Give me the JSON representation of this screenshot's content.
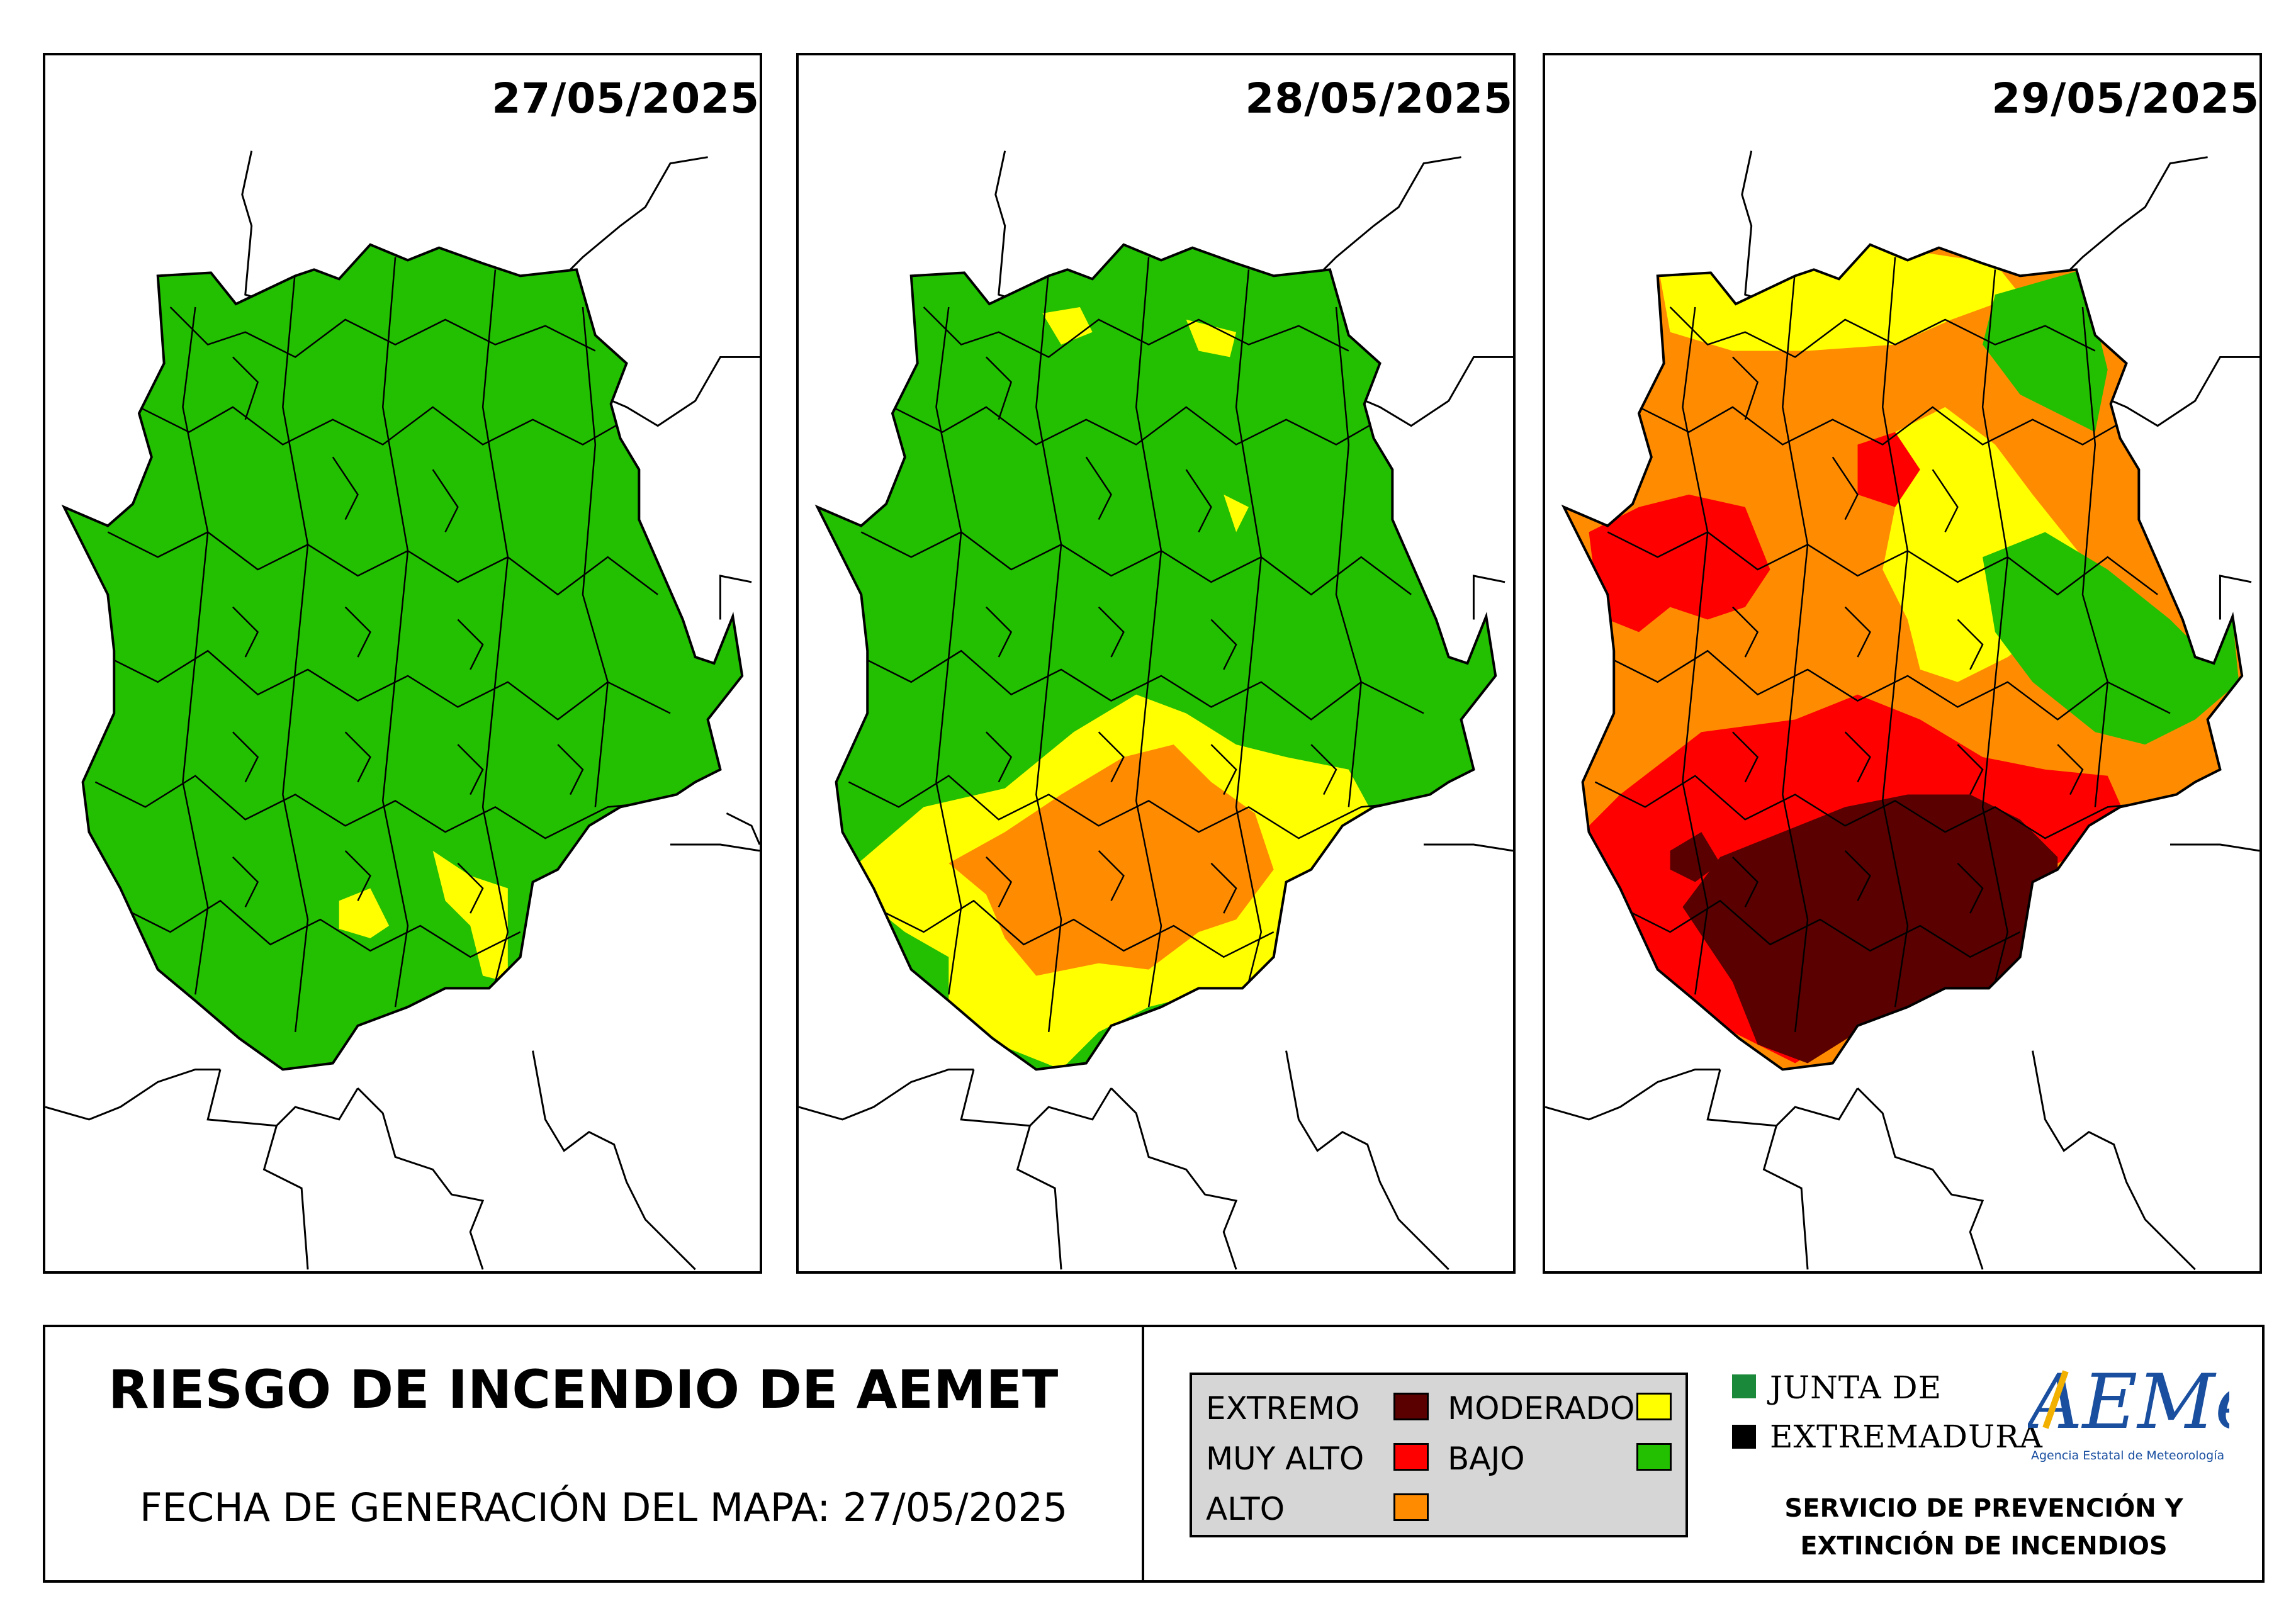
{
  "panels": [
    {
      "date": "27/05/2025"
    },
    {
      "date": "28/05/2025"
    },
    {
      "date": "29/05/2025"
    }
  ],
  "footer": {
    "title": "RIESGO DE INCENDIO DE AEMET",
    "generation_date": "FECHA DE GENERACIÓN DEL MAPA: 27/05/2025"
  },
  "legend": {
    "items": [
      {
        "label": "EXTREMO",
        "color": "#5a0000"
      },
      {
        "label": "MUY ALTO",
        "color": "#ff0000"
      },
      {
        "label": "ALTO",
        "color": "#ff8c00"
      },
      {
        "label": "MODERADO",
        "color": "#ffff00"
      },
      {
        "label": "BAJO",
        "color": "#22c000"
      }
    ]
  },
  "junta": {
    "line1": "JUNTA DE",
    "line2": "EXTREMADURA",
    "green": "#1a8a3a",
    "black": "#000000"
  },
  "aemet": {
    "logo_text": "AEMet",
    "subtitle": "Agencia Estatal de Meteorología"
  },
  "service": {
    "line1": "SERVICIO DE PREVENCIÓN Y",
    "line2": "EXTINCIÓN DE INCENDIOS"
  }
}
